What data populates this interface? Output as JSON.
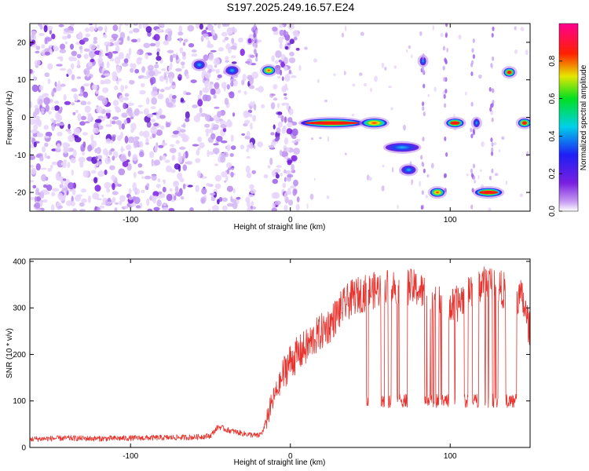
{
  "title": "S197.2025.249.16.57.E24",
  "colors": {
    "snr_line": "#e8332e",
    "axis": "#000000",
    "spectro_low": "#b98bf0",
    "spectro_mid": "#7a1fe0",
    "spectro_high": "#ff0000"
  },
  "chart_data": [
    {
      "type": "heatmap",
      "name": "spectrogram",
      "xlabel": "Height of straight line (km)",
      "ylabel": "Frequency (Hz)",
      "xlim": [
        -163,
        150
      ],
      "ylim": [
        -25,
        25
      ],
      "xticks": [
        -100,
        0,
        100
      ],
      "yticks": [
        -20,
        -10,
        0,
        10,
        20
      ],
      "colorbar": {
        "label": "Normalized spectral amplitude",
        "range": [
          0.0,
          1.0
        ],
        "ticks": [
          0.0,
          0.2,
          0.4,
          0.6,
          0.8
        ],
        "colormap": "rainbow (purple → blue → cyan → green → yellow → red → magenta)"
      },
      "background_noise_region": [
        -163,
        5
      ],
      "features": [
        {
          "x_start": -60,
          "x_end": -54,
          "y": 14,
          "peak": 0.45
        },
        {
          "x_start": -40,
          "x_end": -33,
          "y": 12.5,
          "peak": 0.3
        },
        {
          "x_start": -17,
          "x_end": -10,
          "y": 12.5,
          "peak": 0.55
        },
        {
          "x_start": 7,
          "x_end": 45,
          "y": -1.5,
          "peak": 0.95
        },
        {
          "x_start": 45,
          "x_end": 60,
          "y": -1.5,
          "peak": 0.6
        },
        {
          "x_start": 60,
          "x_end": 80,
          "y": -8,
          "peak": 0.3
        },
        {
          "x_start": 70,
          "x_end": 78,
          "y": -14,
          "peak": 0.35
        },
        {
          "x_start": 82,
          "x_end": 84,
          "y": 15,
          "peak": 0.25
        },
        {
          "x_start": 88,
          "x_end": 96,
          "y": -20,
          "peak": 0.7
        },
        {
          "x_start": 98,
          "x_end": 108,
          "y": -1.5,
          "peak": 0.8
        },
        {
          "x_start": 115,
          "x_end": 118,
          "y": -1.5,
          "peak": 0.3
        },
        {
          "x_start": 116,
          "x_end": 132,
          "y": -20,
          "peak": 0.9
        },
        {
          "x_start": 134,
          "x_end": 140,
          "y": 12,
          "peak": 0.85
        },
        {
          "x_start": 143,
          "x_end": 150,
          "y": -1.5,
          "peak": 0.85
        }
      ]
    },
    {
      "type": "line",
      "name": "snr",
      "xlabel": "Height of straight line (km)",
      "ylabel": "SNR (10 * v/v)",
      "xlim": [
        -163,
        150
      ],
      "ylim": [
        0,
        405
      ],
      "xticks": [
        -100,
        0,
        100
      ],
      "yticks": [
        0,
        100,
        200,
        300,
        400
      ],
      "series": [
        {
          "x": [
            -163,
            -140,
            -120,
            -100,
            -80,
            -60,
            -50,
            -45,
            -40,
            -30,
            -20,
            -17,
            -15,
            -12,
            -10,
            -8,
            -5,
            -3,
            0,
            3,
            5,
            8,
            10,
            15,
            20,
            25,
            30,
            35,
            40,
            45,
            50,
            55,
            60,
            65,
            70,
            75,
            80,
            85,
            90,
            95,
            100,
            105,
            110,
            115,
            120,
            125,
            130,
            135,
            140,
            145,
            150
          ],
          "values": [
            18,
            20,
            19,
            20,
            21,
            22,
            25,
            45,
            38,
            30,
            25,
            35,
            60,
            90,
            110,
            125,
            150,
            170,
            185,
            195,
            200,
            210,
            215,
            235,
            250,
            265,
            290,
            310,
            325,
            330,
            335,
            340,
            345,
            345,
            350,
            345,
            340,
            330,
            310,
            305,
            300,
            310,
            330,
            345,
            350,
            355,
            345,
            335,
            330,
            320,
            250
          ]
        }
      ],
      "low_state_value": 100,
      "dropouts_start_x": 47
    }
  ]
}
